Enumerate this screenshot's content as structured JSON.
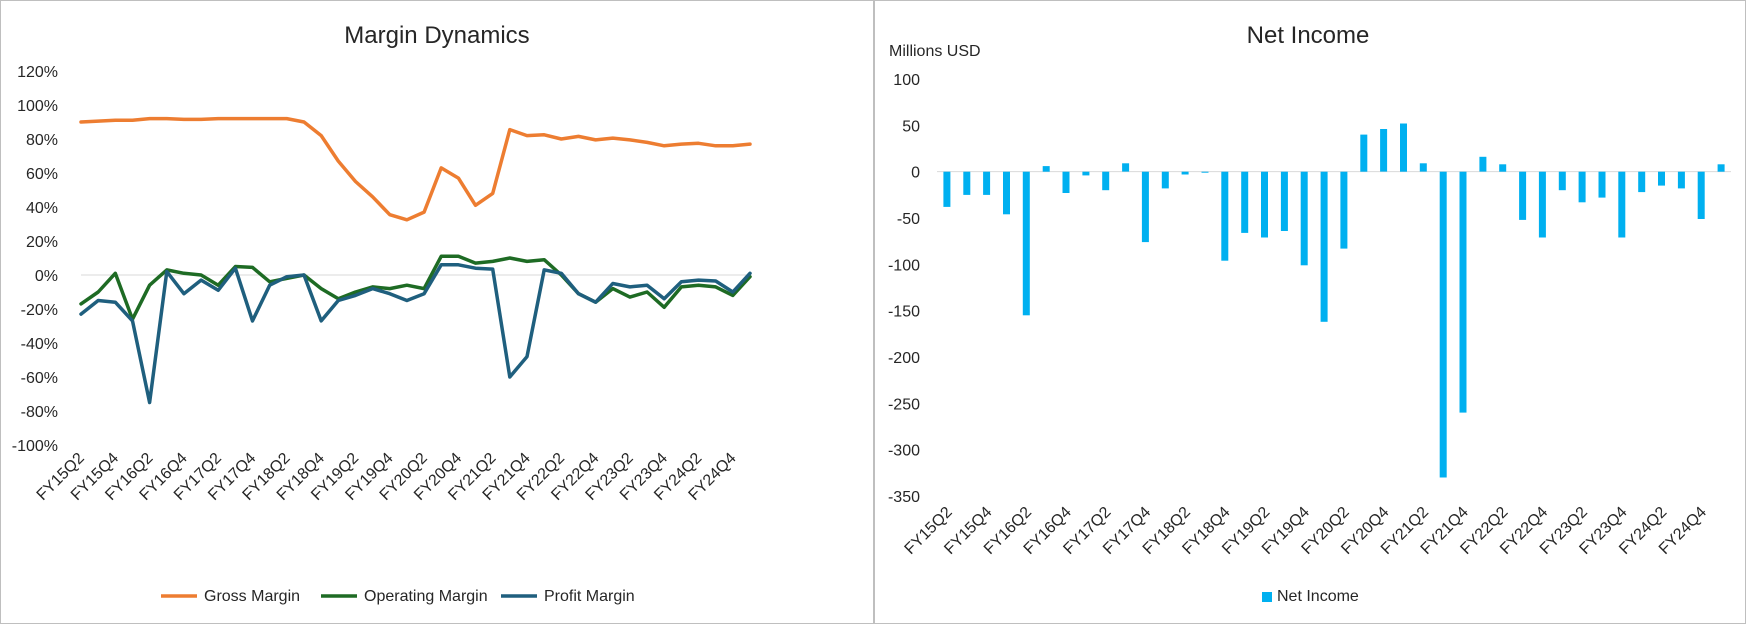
{
  "charts": {
    "margin_chart": {
      "title": "Margin Dynamics",
      "y_tick_labels": [
        "120%",
        "100%",
        "80%",
        "60%",
        "40%",
        "20%",
        "0%",
        "-20%",
        "-40%",
        "-60%",
        "-80%",
        "-100%"
      ],
      "x_tick_labels": [
        "FY15Q2",
        "FY15Q4",
        "FY16Q2",
        "FY16Q4",
        "FY17Q2",
        "FY17Q4",
        "FY18Q2",
        "FY18Q4",
        "FY19Q2",
        "FY19Q4",
        "FY20Q2",
        "FY20Q4",
        "FY21Q2",
        "FY21Q4",
        "FY22Q2",
        "FY22Q4",
        "FY23Q2",
        "FY23Q4",
        "FY24Q2",
        "FY24Q4"
      ],
      "legend": [
        "Gross  Margin",
        "Operating Margin",
        "Profit Margin"
      ]
    },
    "income_chart": {
      "title": "Net Income",
      "unit_label": "Millions USD",
      "y_tick_labels": [
        "100",
        "50",
        "0",
        "-50",
        "-100",
        "-150",
        "-200",
        "-250",
        "-300",
        "-350"
      ],
      "x_tick_labels": [
        "FY15Q2",
        "FY15Q4",
        "FY16Q2",
        "FY16Q4",
        "FY17Q2",
        "FY17Q4",
        "FY18Q2",
        "FY18Q4",
        "FY19Q2",
        "FY19Q4",
        "FY20Q2",
        "FY20Q4",
        "FY21Q2",
        "FY21Q4",
        "FY22Q2",
        "FY22Q4",
        "FY23Q2",
        "FY23Q4",
        "FY24Q2",
        "FY24Q4"
      ],
      "legend": [
        "Net Income"
      ]
    }
  },
  "chart_data": [
    {
      "type": "line",
      "title": "Margin Dynamics",
      "xlabel": "",
      "ylabel": "",
      "ylim": [
        -1.0,
        1.2
      ],
      "legend_position": "bottom",
      "grid": false,
      "x": [
        "FY15Q2",
        "FY15Q3",
        "FY15Q4",
        "FY16Q1",
        "FY16Q2",
        "FY16Q3",
        "FY16Q4",
        "FY17Q1",
        "FY17Q2",
        "FY17Q3",
        "FY17Q4",
        "FY18Q1",
        "FY18Q2",
        "FY18Q3",
        "FY18Q4",
        "FY19Q1",
        "FY19Q2",
        "FY19Q3",
        "FY19Q4",
        "FY20Q1",
        "FY20Q2",
        "FY20Q3",
        "FY20Q4",
        "FY21Q1",
        "FY21Q2",
        "FY21Q3",
        "FY21Q4",
        "FY22Q1",
        "FY22Q2",
        "FY22Q3",
        "FY22Q4",
        "FY23Q1",
        "FY23Q2",
        "FY23Q3",
        "FY23Q4",
        "FY24Q1",
        "FY24Q2",
        "FY24Q3",
        "FY24Q4",
        "FY25Q1"
      ],
      "series": [
        {
          "name": "Gross  Margin",
          "color": "#ed7d31",
          "values": [
            0.9,
            0.905,
            0.91,
            0.91,
            0.92,
            0.92,
            0.915,
            0.915,
            0.92,
            0.92,
            0.92,
            0.92,
            0.92,
            0.9,
            0.82,
            0.67,
            0.55,
            0.46,
            0.355,
            0.325,
            0.37,
            0.63,
            0.57,
            0.41,
            0.48,
            0.855,
            0.82,
            0.825,
            0.8,
            0.815,
            0.795,
            0.805,
            0.795,
            0.78,
            0.76,
            0.77,
            0.775,
            0.76,
            0.76,
            0.77
          ]
        },
        {
          "name": "Operating Margin",
          "color": "#1e6b24",
          "values": [
            -0.17,
            -0.1,
            0.01,
            -0.26,
            -0.06,
            0.03,
            0.01,
            0.0,
            -0.06,
            0.05,
            0.045,
            -0.04,
            -0.02,
            0.0,
            -0.08,
            -0.14,
            -0.1,
            -0.07,
            -0.08,
            -0.06,
            -0.08,
            0.11,
            0.11,
            0.07,
            0.08,
            0.1,
            0.08,
            0.09,
            0.0,
            -0.11,
            -0.16,
            -0.08,
            -0.13,
            -0.1,
            -0.19,
            -0.07,
            -0.06,
            -0.07,
            -0.12,
            -0.01
          ]
        },
        {
          "name": "Profit Margin",
          "color": "#1f5f7e",
          "values": [
            -0.23,
            -0.15,
            -0.16,
            -0.27,
            -0.75,
            0.02,
            -0.11,
            -0.03,
            -0.09,
            0.04,
            -0.27,
            -0.06,
            -0.01,
            0.0,
            -0.27,
            -0.15,
            -0.12,
            -0.08,
            -0.11,
            -0.15,
            -0.11,
            0.06,
            0.06,
            0.04,
            0.035,
            -0.6,
            -0.48,
            0.03,
            0.01,
            -0.11,
            -0.16,
            -0.05,
            -0.07,
            -0.06,
            -0.14,
            -0.04,
            -0.03,
            -0.035,
            -0.1,
            0.01
          ]
        }
      ]
    },
    {
      "type": "bar",
      "title": "Net Income",
      "xlabel": "",
      "ylabel": "Millions USD",
      "ylim": [
        -350,
        100
      ],
      "legend_position": "bottom",
      "grid": false,
      "color": "#00b0f0",
      "categories": [
        "FY15Q2",
        "FY15Q3",
        "FY15Q4",
        "FY16Q1",
        "FY16Q2",
        "FY16Q3",
        "FY16Q4",
        "FY17Q1",
        "FY17Q2",
        "FY17Q3",
        "FY17Q4",
        "FY18Q1",
        "FY18Q2",
        "FY18Q3",
        "FY18Q4",
        "FY19Q1",
        "FY19Q2",
        "FY19Q3",
        "FY19Q4",
        "FY20Q1",
        "FY20Q2",
        "FY20Q3",
        "FY20Q4",
        "FY21Q1",
        "FY21Q2",
        "FY21Q3",
        "FY21Q4",
        "FY22Q1",
        "FY22Q2",
        "FY22Q3",
        "FY22Q4",
        "FY23Q1",
        "FY23Q2",
        "FY23Q3",
        "FY23Q4",
        "FY24Q1",
        "FY24Q2",
        "FY24Q3",
        "FY24Q4",
        "FY25Q1"
      ],
      "series": [
        {
          "name": "Net Income",
          "values": [
            -38,
            -25,
            -25,
            -46,
            -155,
            6,
            -23,
            -4,
            -20,
            9,
            -76,
            -18,
            -3,
            0,
            -96,
            -66,
            -71,
            -64,
            -101,
            -162,
            -83,
            40,
            46,
            52,
            9,
            -330,
            -260,
            16,
            8,
            -52,
            -71,
            -20,
            -33,
            -28,
            -71,
            -22,
            -15,
            -18,
            -51,
            8
          ]
        }
      ]
    }
  ]
}
